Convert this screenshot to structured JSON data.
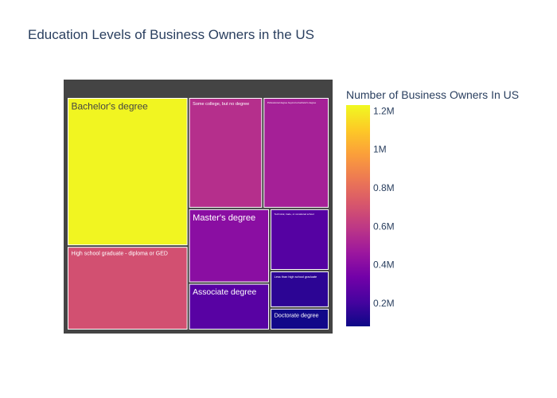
{
  "chart_data": {
    "type": "treemap",
    "title": "Education Levels of Business Owners in the US",
    "items": [
      {
        "label": "Bachelor's degree",
        "value": 1220000
      },
      {
        "label": "High school graduate - diploma or GED",
        "value": 690000
      },
      {
        "label": "Some college, but no degree",
        "value": 560000
      },
      {
        "label": "Professional degree beyond a bachelor's degree",
        "value": 500000
      },
      {
        "label": "Master's degree",
        "value": 410000
      },
      {
        "label": "Associate degree",
        "value": 260000
      },
      {
        "label": "Technical, trade, or vocational school",
        "value": 250000
      },
      {
        "label": "Less than high school graduate",
        "value": 150000
      },
      {
        "label": "Doctorate degree",
        "value": 90000
      }
    ],
    "colorbar": {
      "title": "Number of Business Owners In US",
      "min": 80000,
      "max": 1230000,
      "ticks": [
        {
          "value": 200000,
          "label": "0.2M"
        },
        {
          "value": 400000,
          "label": "0.4M"
        },
        {
          "value": 600000,
          "label": "0.6M"
        },
        {
          "value": 800000,
          "label": "0.8M"
        },
        {
          "value": 1000000,
          "label": "1M"
        },
        {
          "value": 1200000,
          "label": "1.2M"
        }
      ],
      "colorscale": [
        "#0d0887",
        "#46039f",
        "#7201a8",
        "#9c179e",
        "#bd3786",
        "#d8576b",
        "#ed7953",
        "#fb9f3a",
        "#fdca26",
        "#f0f921"
      ]
    }
  }
}
